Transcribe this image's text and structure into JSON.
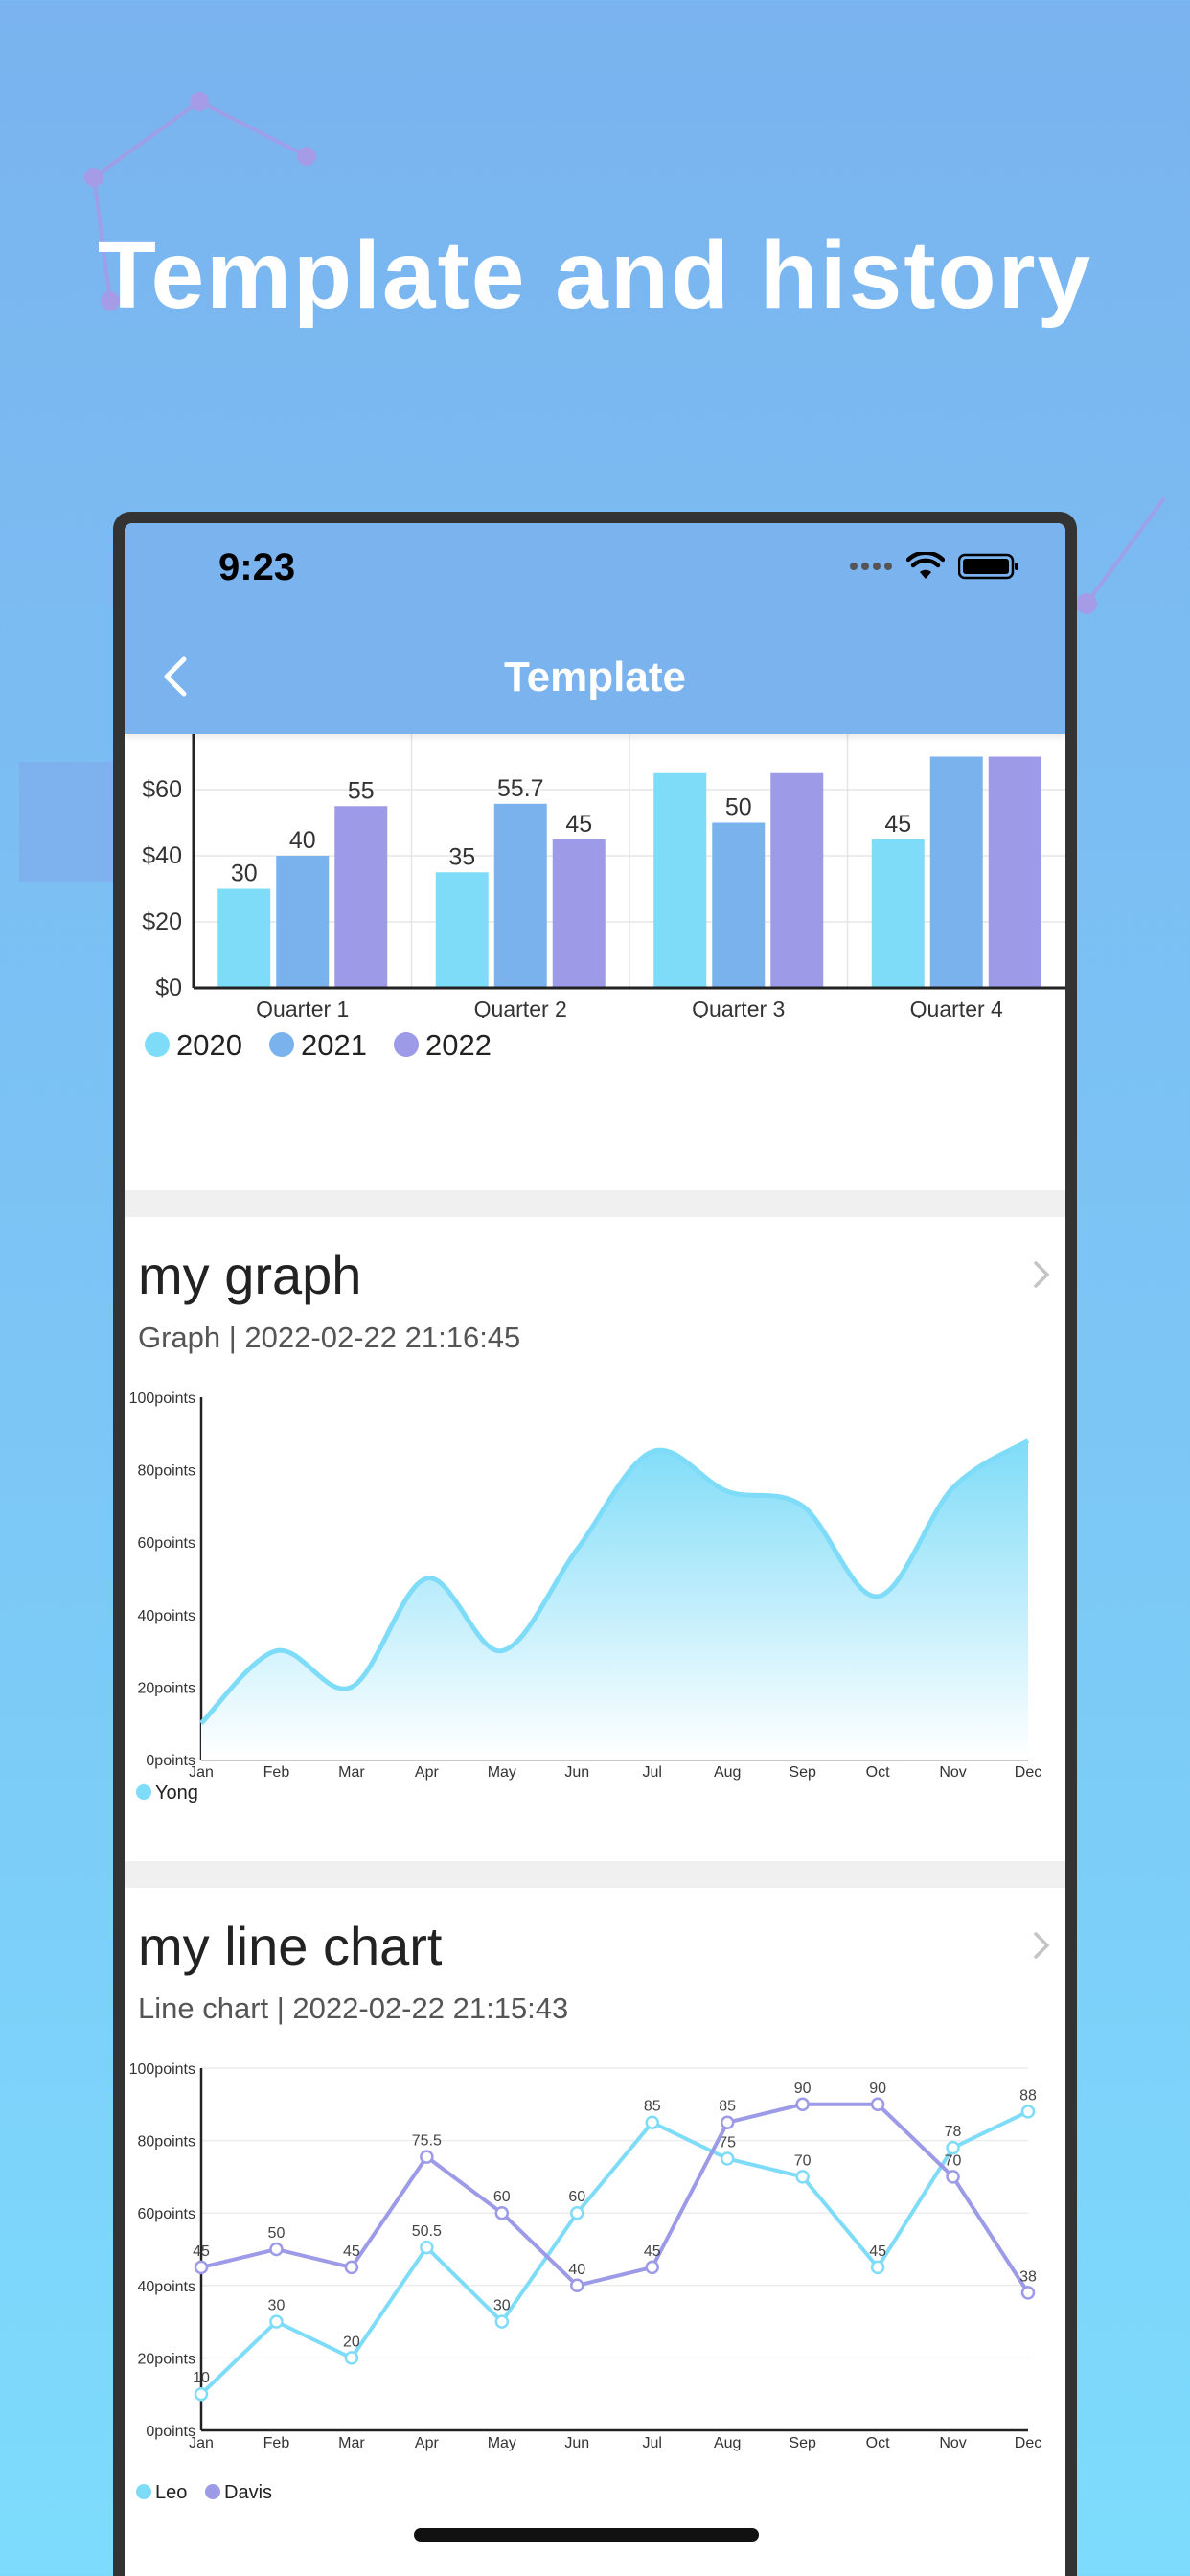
{
  "hero": {
    "title": "Template and history"
  },
  "status_bar": {
    "time": "9:23"
  },
  "nav": {
    "title": "Template",
    "back_icon": "chevron-left-icon"
  },
  "colors": {
    "cyan": "#7fdcf8",
    "blue": "#7ab2ee",
    "purple": "#9d9ae8",
    "nav": "#7ab3ee"
  },
  "cards": [
    {
      "kind": "bar-chart",
      "chart_data": {
        "type": "bar",
        "categories": [
          "Quarter 1",
          "Quarter 2",
          "Quarter 3",
          "Quarter 4"
        ],
        "series": [
          {
            "name": "2020",
            "values": [
              30,
              35,
              65,
              45
            ],
            "data_labels": [
              "30",
              "35",
              "",
              "45"
            ]
          },
          {
            "name": "2021",
            "values": [
              40,
              55.7,
              50,
              70
            ],
            "data_labels": [
              "40",
              "55.7",
              "50",
              ""
            ]
          },
          {
            "name": "2022",
            "values": [
              55,
              45,
              65,
              70
            ],
            "data_labels": [
              "55",
              "45",
              "",
              ""
            ]
          }
        ],
        "y_ticks": [
          "$0",
          "$20",
          "$40",
          "$60"
        ],
        "ylim": [
          0,
          60
        ],
        "grid": true,
        "legend": "bottom-left"
      }
    },
    {
      "kind": "area-chart",
      "title": "my graph",
      "subtitle": "Graph | 2022-02-22 21:16:45",
      "chart_data": {
        "type": "area",
        "x": [
          "Jan",
          "Feb",
          "Mar",
          "Apr",
          "May",
          "Jun",
          "Jul",
          "Aug",
          "Sep",
          "Oct",
          "Nov",
          "Dec"
        ],
        "series": [
          {
            "name": "Yong",
            "values": [
              10,
              30,
              20,
              50,
              30,
              58,
              85,
              74,
              70,
              45,
              75,
              88
            ]
          }
        ],
        "y_ticks": [
          "0points",
          "20points",
          "40points",
          "60points",
          "80points",
          "100points"
        ],
        "ylim": [
          0,
          100
        ],
        "legend": "bottom-left"
      }
    },
    {
      "kind": "line-chart",
      "title": "my line chart",
      "subtitle": "Line chart | 2022-02-22 21:15:43",
      "chart_data": {
        "type": "line",
        "x": [
          "Jan",
          "Feb",
          "Mar",
          "Apr",
          "May",
          "Jun",
          "Jul",
          "Aug",
          "Sep",
          "Oct",
          "Nov",
          "Dec"
        ],
        "series": [
          {
            "name": "Leo",
            "values": [
              10,
              30,
              20,
              50.5,
              30,
              60,
              85,
              75,
              70,
              45,
              78,
              88
            ]
          },
          {
            "name": "Davis",
            "values": [
              45,
              50,
              45,
              75.5,
              60,
              40,
              45,
              85,
              90,
              90,
              70,
              38
            ]
          }
        ],
        "y_ticks": [
          "0points",
          "20points",
          "40points",
          "60points",
          "80points",
          "100points"
        ],
        "ylim": [
          0,
          100
        ],
        "grid": true,
        "legend": "bottom-left"
      }
    }
  ]
}
